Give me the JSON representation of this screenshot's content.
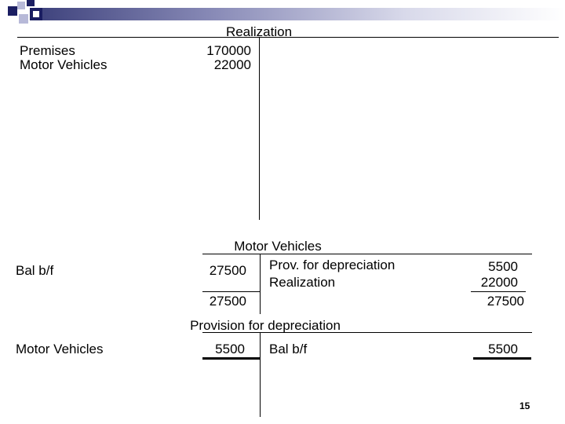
{
  "colors": {
    "band_dark": "#1b1e62",
    "band_light": "#b7b9d8"
  },
  "realization": {
    "title": "Realization",
    "rows": [
      {
        "label": "Premises",
        "amount": "170000"
      },
      {
        "label": "Motor Vehicles",
        "amount": "22000"
      }
    ]
  },
  "motor_vehicles": {
    "title": "Motor Vehicles",
    "debit": {
      "label": "Bal b/f",
      "amount": "27500",
      "total": "27500"
    },
    "credit": {
      "rows": [
        {
          "label": "Prov. for depreciation",
          "amount": "5500"
        },
        {
          "label": "Realization",
          "amount": "22000"
        }
      ],
      "total": "27500"
    }
  },
  "provision": {
    "title": "Provision for depreciation",
    "debit": {
      "label": "Motor Vehicles",
      "amount": "5500"
    },
    "credit": {
      "label": "Bal b/f",
      "amount": "5500"
    }
  },
  "page_number": "15"
}
